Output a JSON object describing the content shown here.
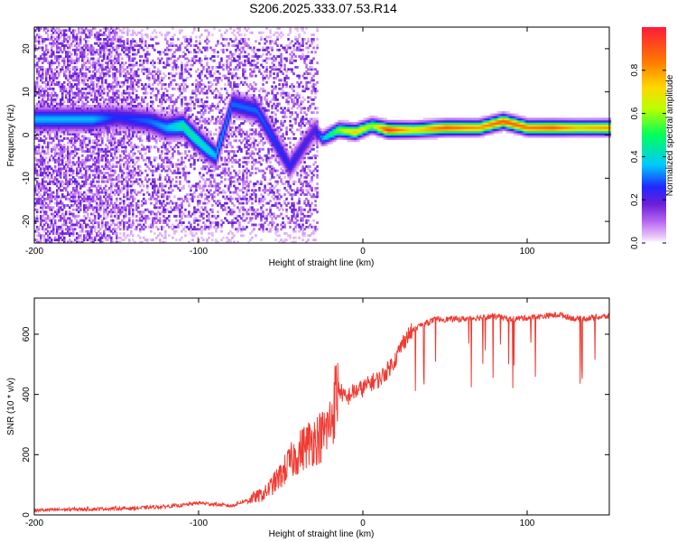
{
  "title": "S206.2025.333.07.53.R14",
  "chart_data": [
    {
      "type": "heatmap",
      "xlabel": "Height of straight line (km)",
      "ylabel": "Frequency (Hz)",
      "xlim": [
        -200,
        150
      ],
      "ylim": [
        -25,
        25
      ],
      "xticks": [
        -200,
        -100,
        0,
        100
      ],
      "yticks": [
        20,
        10,
        0,
        -10,
        -20
      ],
      "colorbar": {
        "label": "Normalized spectral amplitude",
        "range": [
          0,
          1
        ],
        "ticks": [
          0.0,
          0.2,
          0.4,
          0.6,
          0.8
        ],
        "colormap": "rainbow (magenta-blue-cyan-green-yellow-red)"
      },
      "ridge": [
        {
          "x": -165,
          "y": 3.5,
          "amp": 0.35
        },
        {
          "x": -150,
          "y": 4.0,
          "amp": 0.25
        },
        {
          "x": -130,
          "y": 3.0,
          "amp": 0.3
        },
        {
          "x": -120,
          "y": 1.5,
          "amp": 0.35
        },
        {
          "x": -110,
          "y": 2.0,
          "amp": 0.45
        },
        {
          "x": -105,
          "y": 0.0,
          "amp": 0.45
        },
        {
          "x": -95,
          "y": -3.5,
          "amp": 0.4
        },
        {
          "x": -90,
          "y": -5.0,
          "amp": 0.35
        },
        {
          "x": -80,
          "y": 7.0,
          "amp": 0.3
        },
        {
          "x": -65,
          "y": 5.5,
          "amp": 0.3
        },
        {
          "x": -45,
          "y": -7.5,
          "amp": 0.25
        },
        {
          "x": -30,
          "y": 1.0,
          "amp": 0.2
        },
        {
          "x": -25,
          "y": -1.0,
          "amp": 0.35
        },
        {
          "x": -15,
          "y": 1.0,
          "amp": 0.6
        },
        {
          "x": -5,
          "y": 0.5,
          "amp": 0.75
        },
        {
          "x": 5,
          "y": 2.0,
          "amp": 0.6
        },
        {
          "x": 15,
          "y": 1.0,
          "amp": 0.95
        },
        {
          "x": 30,
          "y": 1.0,
          "amp": 0.7
        },
        {
          "x": 50,
          "y": 1.5,
          "amp": 0.9
        },
        {
          "x": 70,
          "y": 1.5,
          "amp": 0.8
        },
        {
          "x": 85,
          "y": 3.0,
          "amp": 0.9
        },
        {
          "x": 100,
          "y": 1.5,
          "amp": 0.85
        },
        {
          "x": 115,
          "y": 1.5,
          "amp": 0.9
        },
        {
          "x": 130,
          "y": 1.5,
          "amp": 0.75
        },
        {
          "x": 150,
          "y": 1.5,
          "amp": 0.8
        }
      ]
    },
    {
      "type": "line",
      "xlabel": "Height of straight line (km)",
      "ylabel": "SNR (10 * v/v)",
      "xlim": [
        -200,
        150
      ],
      "ylim": [
        0,
        720
      ],
      "xticks": [
        -200,
        -100,
        0,
        100
      ],
      "yticks": [
        0,
        200,
        400,
        600
      ],
      "color": "#f03a32",
      "series": [
        {
          "name": "SNR",
          "x": [
            -200,
            -180,
            -160,
            -140,
            -120,
            -110,
            -100,
            -90,
            -80,
            -70,
            -60,
            -55,
            -50,
            -45,
            -40,
            -35,
            -30,
            -25,
            -20,
            -17,
            -15,
            -12,
            -10,
            -8,
            -5,
            0,
            5,
            10,
            15,
            20,
            25,
            30,
            35,
            40,
            45,
            50,
            60,
            70,
            80,
            90,
            100,
            110,
            120,
            130,
            140,
            150
          ],
          "y": [
            15,
            18,
            20,
            22,
            28,
            32,
            40,
            35,
            30,
            50,
            70,
            100,
            130,
            170,
            200,
            230,
            250,
            260,
            300,
            380,
            420,
            400,
            380,
            400,
            410,
            420,
            440,
            450,
            480,
            520,
            580,
            610,
            630,
            640,
            650,
            650,
            650,
            655,
            660,
            650,
            655,
            660,
            665,
            650,
            655,
            660
          ]
        }
      ]
    }
  ]
}
